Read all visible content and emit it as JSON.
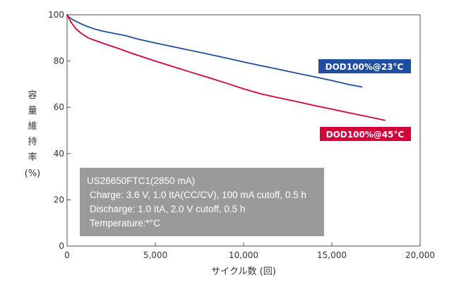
{
  "chart_data": {
    "type": "line",
    "title": "",
    "xlabel": "サイクル数 (回)",
    "ylabel": [
      "容",
      "量",
      "維",
      "持",
      "率",
      "(%)"
    ],
    "xlim": [
      0,
      20000
    ],
    "ylim": [
      0,
      100
    ],
    "x_ticks": [
      0,
      5000,
      10000,
      15000,
      20000
    ],
    "x_tick_labels": [
      "0",
      "5,000",
      "10,000",
      "15,000",
      "20,000"
    ],
    "y_ticks": [
      0,
      20,
      40,
      60,
      80,
      100
    ],
    "y_tick_labels": [
      "0",
      "20",
      "40",
      "60",
      "80",
      "100"
    ],
    "grid": false,
    "series": [
      {
        "name": "DOD100%@23°C",
        "color": "#1f4ea1",
        "x": [
          0,
          100,
          300,
          600,
          1000,
          1500,
          2000,
          2500,
          3300,
          4000,
          5000,
          6000,
          7000,
          8000,
          9000,
          10000,
          11000,
          12000,
          13000,
          14000,
          15000,
          16000,
          16700
        ],
        "y": [
          100,
          99,
          98,
          96.8,
          95.4,
          94,
          93,
          92.2,
          91,
          89.5,
          87.8,
          86.2,
          84.6,
          83,
          81.3,
          79.6,
          78,
          76.4,
          74.8,
          73.2,
          71.6,
          69.8,
          68.8
        ]
      },
      {
        "name": "DOD100%@45°C",
        "color": "#d4003a",
        "x": [
          0,
          100,
          250,
          500,
          800,
          1200,
          1700,
          2300,
          3000,
          3500,
          4000,
          5000,
          6000,
          7000,
          8000,
          9000,
          10000,
          11000,
          12000,
          13000,
          14000,
          15000,
          16000,
          17000,
          18000
        ],
        "y": [
          100,
          98.5,
          96.5,
          94,
          92,
          90,
          88.6,
          87,
          85.2,
          83.8,
          82.5,
          80,
          77.6,
          75.2,
          72.9,
          70.5,
          68,
          65.8,
          64.1,
          62.5,
          60.8,
          59.2,
          57.6,
          56,
          54.4
        ]
      }
    ],
    "annotation": {
      "title": "US26650FTC1(2850 mA)",
      "lines": [
        "Charge: 3.6 V, 1.0 ItA(CC/CV), 100 mA cutoff, 0.5 h",
        "Discharge: 1.0 ItA, 2.0 V cutoff, 0.5 h",
        "Temperature:*°C"
      ]
    }
  }
}
